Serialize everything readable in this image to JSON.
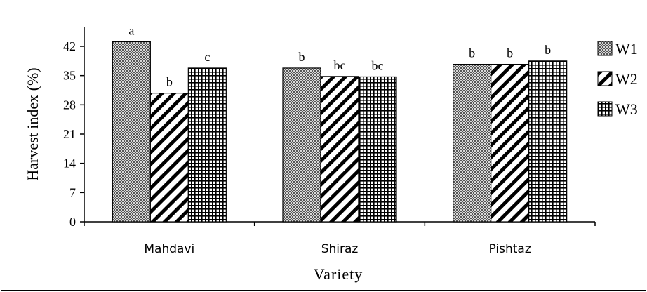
{
  "chart_data": {
    "type": "bar",
    "categories": [
      "Mahdavi",
      "Shiraz",
      "Pishtaz"
    ],
    "series": [
      {
        "name": "W1",
        "values": [
          43.1,
          36.8,
          37.7
        ],
        "letters": [
          "a",
          "b",
          "b"
        ],
        "pattern": "dots"
      },
      {
        "name": "W2",
        "values": [
          30.8,
          34.8,
          37.7
        ],
        "letters": [
          "b",
          "bc",
          "b"
        ],
        "pattern": "diagonal"
      },
      {
        "name": "W3",
        "values": [
          36.8,
          34.7,
          38.5
        ],
        "letters": [
          "c",
          "bc",
          "b"
        ],
        "pattern": "grid"
      }
    ],
    "xlabel": "Variety",
    "ylabel": "Harvest index (%)",
    "ylim": [
      0,
      42
    ],
    "yticks": [
      "0",
      "7",
      "14",
      "21",
      "28",
      "35",
      "42"
    ],
    "grid": false,
    "legend_position": "right"
  }
}
